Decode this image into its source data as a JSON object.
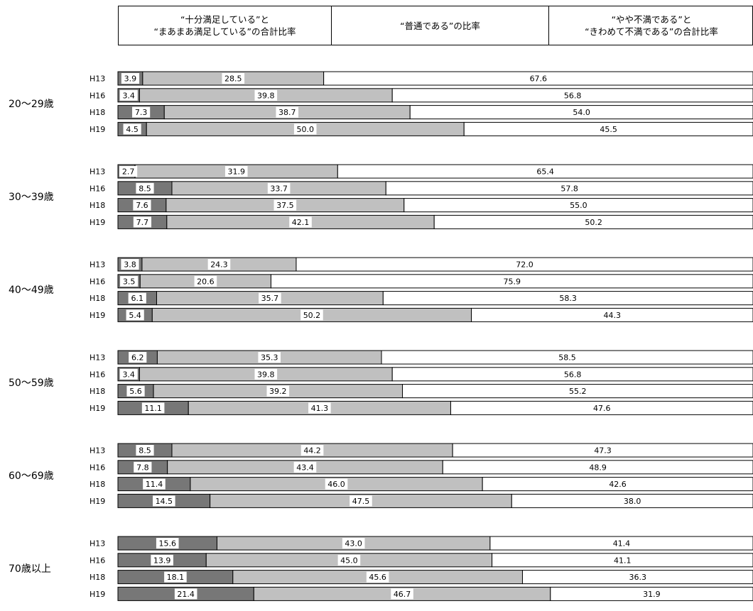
{
  "legend": {
    "satisfied_line1": "“十分満足している”と",
    "satisfied_line2": "“まあまあ満足している”の合計比率",
    "neutral_line1": "“普通である”の比率",
    "dissatisfied_line1": "“やや不満である”と",
    "dissatisfied_line2": "“きわめて不満である”の合計比率"
  },
  "colors": {
    "satisfied": "#777777",
    "neutral": "#c0c0c0",
    "dissatisfied": "#ffffff",
    "border": "#000000"
  },
  "chart_data": {
    "type": "bar",
    "orientation": "horizontal",
    "stacked": true,
    "percent_stacked": true,
    "grid": false,
    "legend_placement": "top",
    "series": [
      {
        "name": "“十分満足している”と“まあまあ満足している”の合計比率"
      },
      {
        "name": "“普通である”の比率"
      },
      {
        "name": "“やや不満である”と“きわめて不満である”の合計比率"
      }
    ],
    "groups": [
      {
        "label": "20〜29歳",
        "rows": [
          {
            "year": "H13",
            "values": [
              3.9,
              28.5,
              67.6
            ]
          },
          {
            "year": "H16",
            "values": [
              3.4,
              39.8,
              56.8
            ]
          },
          {
            "year": "H18",
            "values": [
              7.3,
              38.7,
              54.0
            ]
          },
          {
            "year": "H19",
            "values": [
              4.5,
              50.0,
              45.5
            ]
          }
        ]
      },
      {
        "label": "30〜39歳",
        "rows": [
          {
            "year": "H13",
            "values": [
              2.7,
              31.9,
              65.4
            ]
          },
          {
            "year": "H16",
            "values": [
              8.5,
              33.7,
              57.8
            ]
          },
          {
            "year": "H18",
            "values": [
              7.6,
              37.5,
              55.0
            ]
          },
          {
            "year": "H19",
            "values": [
              7.7,
              42.1,
              50.2
            ]
          }
        ]
      },
      {
        "label": "40〜49歳",
        "rows": [
          {
            "year": "H13",
            "values": [
              3.8,
              24.3,
              72.0
            ]
          },
          {
            "year": "H16",
            "values": [
              3.5,
              20.6,
              75.9
            ]
          },
          {
            "year": "H18",
            "values": [
              6.1,
              35.7,
              58.3
            ]
          },
          {
            "year": "H19",
            "values": [
              5.4,
              50.2,
              44.3
            ]
          }
        ]
      },
      {
        "label": "50〜59歳",
        "rows": [
          {
            "year": "H13",
            "values": [
              6.2,
              35.3,
              58.5
            ]
          },
          {
            "year": "H16",
            "values": [
              3.4,
              39.8,
              56.8
            ]
          },
          {
            "year": "H18",
            "values": [
              5.6,
              39.2,
              55.2
            ]
          },
          {
            "year": "H19",
            "values": [
              11.1,
              41.3,
              47.6
            ]
          }
        ]
      },
      {
        "label": "60〜69歳",
        "rows": [
          {
            "year": "H13",
            "values": [
              8.5,
              44.2,
              47.3
            ]
          },
          {
            "year": "H16",
            "values": [
              7.8,
              43.4,
              48.9
            ]
          },
          {
            "year": "H18",
            "values": [
              11.4,
              46.0,
              42.6
            ]
          },
          {
            "year": "H19",
            "values": [
              14.5,
              47.5,
              38.0
            ]
          }
        ]
      },
      {
        "label": "70歳以上",
        "rows": [
          {
            "year": "H13",
            "values": [
              15.6,
              43.0,
              41.4
            ]
          },
          {
            "year": "H16",
            "values": [
              13.9,
              45.0,
              41.1
            ]
          },
          {
            "year": "H18",
            "values": [
              18.1,
              45.6,
              36.3
            ]
          },
          {
            "year": "H19",
            "values": [
              21.4,
              46.7,
              31.9
            ]
          }
        ]
      }
    ]
  }
}
